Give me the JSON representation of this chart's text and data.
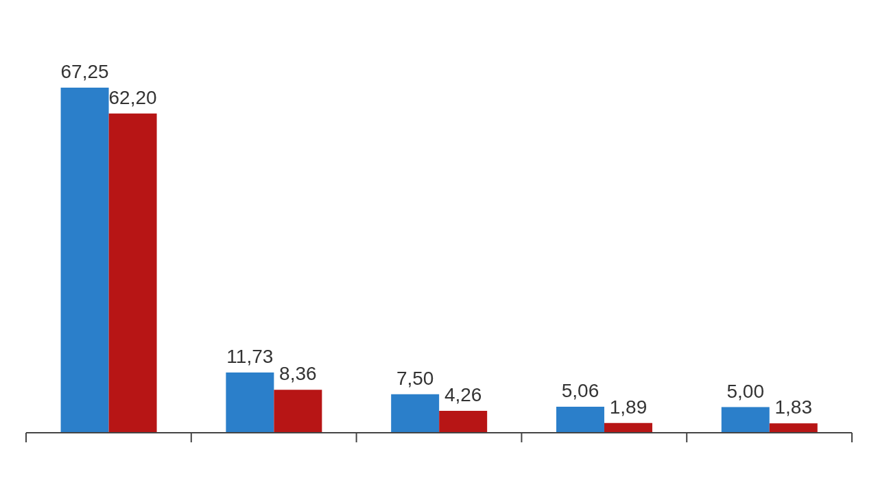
{
  "chart_data": {
    "type": "bar",
    "categories": [
      null,
      null,
      null,
      null,
      null
    ],
    "series": [
      {
        "color": "#2b7fca",
        "values": [
          67.25,
          11.73,
          7.5,
          5.06,
          5.0
        ],
        "value_labels": [
          "67,25",
          "11,73",
          "7,50",
          "5,06",
          "5,00"
        ]
      },
      {
        "color": "#b71515",
        "values": [
          62.2,
          8.36,
          4.26,
          1.89,
          1.83
        ],
        "value_labels": [
          "62,20",
          "8,36",
          "4,26",
          "1,89",
          "1,83"
        ]
      }
    ]
  }
}
